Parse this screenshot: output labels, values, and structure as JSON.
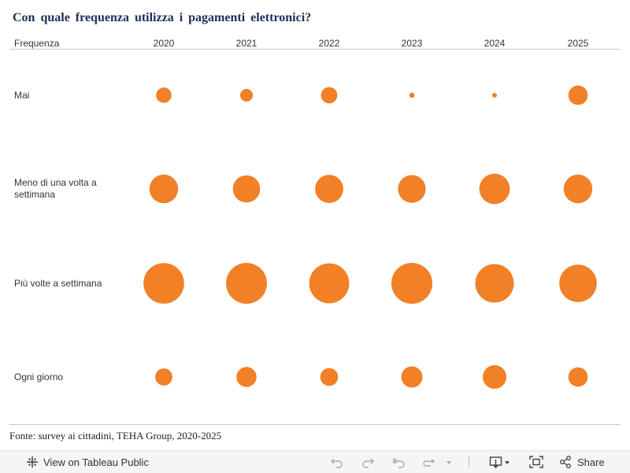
{
  "title": "Con quale frequenza utilizza i pagamenti elettronici?",
  "row_header": "Frequenza",
  "source": "Fonte: survey ai cittadini, TEHA Group, 2020-2025",
  "colors": {
    "bubble": "#F28026",
    "title": "#1f2d5a"
  },
  "chart_data": {
    "type": "bubble-grid",
    "x": [
      "2020",
      "2021",
      "2022",
      "2023",
      "2024",
      "2025"
    ],
    "rows": [
      {
        "label": "Mai",
        "values": [
          4.5,
          3.0,
          5.0,
          0.5,
          0.4,
          7.0
        ]
      },
      {
        "label": "Meno di una volta a settimana",
        "values": [
          15.5,
          14.0,
          15.0,
          14.5,
          17.5,
          15.5
        ]
      },
      {
        "label": "Più volte a settimana",
        "values": [
          31.0,
          31.5,
          30.0,
          31.5,
          28.0,
          26.5
        ]
      },
      {
        "label": "Ogni giorno",
        "values": [
          5.5,
          7.5,
          6.0,
          8.5,
          10.5,
          7.0
        ]
      }
    ],
    "legend": "none",
    "grid": false
  },
  "toolbar": {
    "view_label": "View on Tableau Public",
    "share_label": "Share",
    "icons": [
      "tableau-logo-icon",
      "undo-icon",
      "redo-icon",
      "revert-icon",
      "refresh-icon",
      "dropdown-caret-icon",
      "download-icon",
      "fullscreen-icon",
      "share-icon"
    ]
  }
}
